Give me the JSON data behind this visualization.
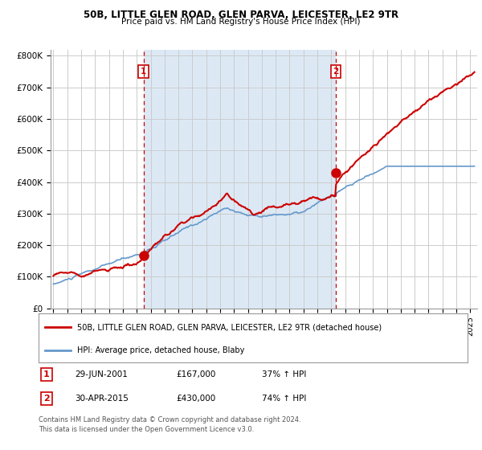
{
  "title": "50B, LITTLE GLEN ROAD, GLEN PARVA, LEICESTER, LE2 9TR",
  "subtitle": "Price paid vs. HM Land Registry's House Price Index (HPI)",
  "ylabel_ticks": [
    "£0",
    "£100K",
    "£200K",
    "£300K",
    "£400K",
    "£500K",
    "£600K",
    "£700K",
    "£800K"
  ],
  "ytick_values": [
    0,
    100000,
    200000,
    300000,
    400000,
    500000,
    600000,
    700000,
    800000
  ],
  "ylim": [
    0,
    820000
  ],
  "xlim_start": 1994.8,
  "xlim_end": 2025.5,
  "hpi_color": "#6699cc",
  "price_color": "#cc0000",
  "shade_color": "#dce9f5",
  "marker1_x": 2001.49,
  "marker1_y": 167000,
  "marker2_x": 2015.33,
  "marker2_y": 430000,
  "legend_label1": "50B, LITTLE GLEN ROAD, GLEN PARVA, LEICESTER, LE2 9TR (detached house)",
  "legend_label2": "HPI: Average price, detached house, Blaby",
  "table_entries": [
    {
      "num": "1",
      "date": "29-JUN-2001",
      "price": "£167,000",
      "hpi": "37% ↑ HPI"
    },
    {
      "num": "2",
      "date": "30-APR-2015",
      "price": "£430,000",
      "hpi": "74% ↑ HPI"
    }
  ],
  "footnote1": "Contains HM Land Registry data © Crown copyright and database right 2024.",
  "footnote2": "This data is licensed under the Open Government Licence v3.0.",
  "background_color": "#ffffff",
  "grid_color": "#cccccc"
}
